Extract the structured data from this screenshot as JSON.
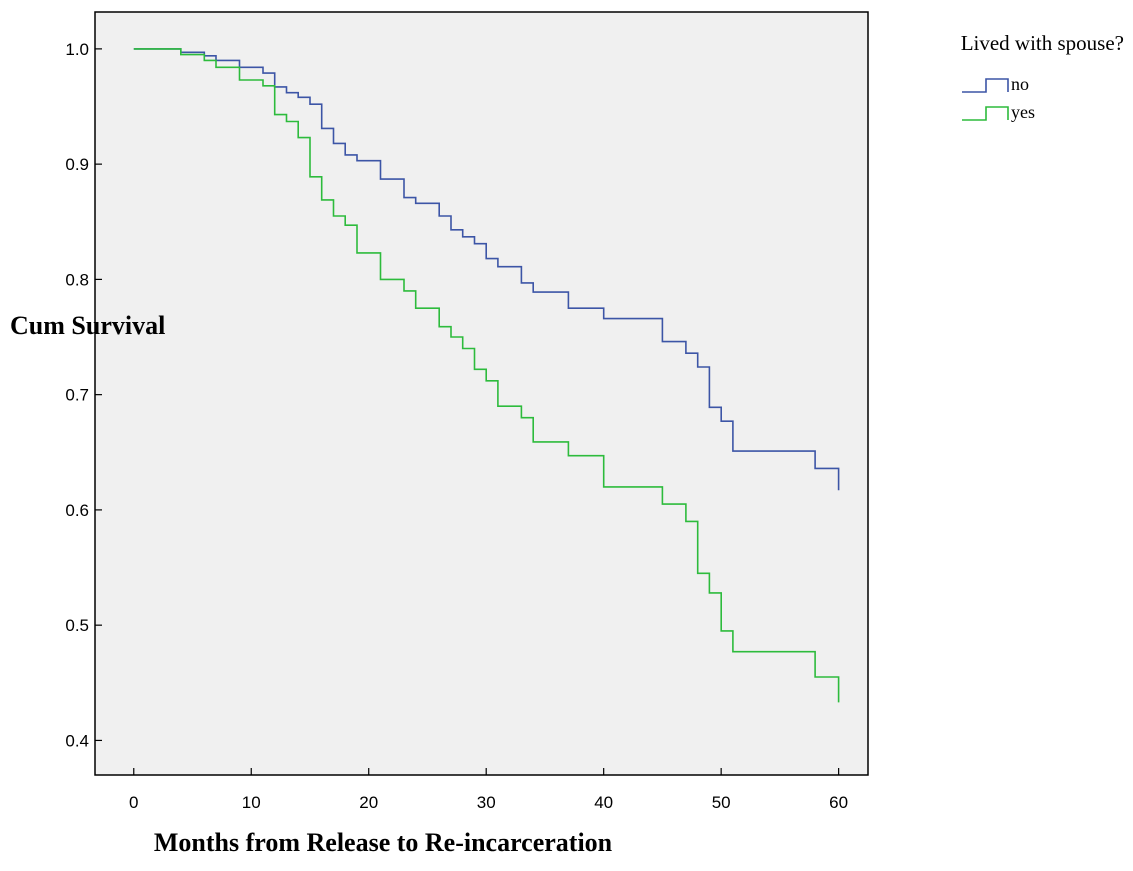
{
  "chart_data": {
    "type": "line",
    "title": "",
    "xlabel": "Months from Release to Re-incarceration",
    "ylabel": "Cum Survival",
    "xlim": [
      -3.3,
      62.5
    ],
    "ylim": [
      0.37,
      1.032
    ],
    "x_ticks": [
      0,
      10,
      20,
      30,
      40,
      50,
      60
    ],
    "y_ticks": [
      0.4,
      0.5,
      0.6,
      0.7,
      0.8,
      0.9,
      1.0
    ],
    "x_tick_labels": [
      "0",
      "10",
      "20",
      "30",
      "40",
      "50",
      "60"
    ],
    "y_tick_labels": [
      "0.4",
      "0.5",
      "0.6",
      "0.7",
      "0.8",
      "0.9",
      "1.0"
    ],
    "grid": false,
    "step": true,
    "legend": {
      "title": "Lived with spouse?",
      "position": "top-right-outside"
    },
    "series": [
      {
        "name": "no",
        "color": "#3c55a6",
        "x": [
          0,
          4,
          6,
          7,
          9,
          11,
          12,
          13,
          14,
          15,
          16,
          17,
          18,
          19,
          21,
          23,
          24,
          26,
          27,
          28,
          29,
          30,
          31,
          33,
          34,
          37,
          40,
          45,
          47,
          48,
          49,
          50,
          51,
          58,
          60
        ],
        "y": [
          1.0,
          0.997,
          0.994,
          0.99,
          0.984,
          0.979,
          0.967,
          0.962,
          0.958,
          0.952,
          0.931,
          0.918,
          0.908,
          0.903,
          0.887,
          0.871,
          0.866,
          0.855,
          0.843,
          0.837,
          0.831,
          0.818,
          0.811,
          0.797,
          0.789,
          0.775,
          0.766,
          0.746,
          0.736,
          0.724,
          0.689,
          0.677,
          0.651,
          0.636,
          0.617
        ]
      },
      {
        "name": "yes",
        "color": "#2dbb3c",
        "x": [
          0,
          4,
          6,
          7,
          9,
          11,
          12,
          13,
          14,
          15,
          16,
          17,
          18,
          19,
          21,
          23,
          24,
          26,
          27,
          28,
          29,
          30,
          31,
          33,
          34,
          37,
          40,
          45,
          47,
          48,
          49,
          50,
          51,
          58,
          60
        ],
        "y": [
          1.0,
          0.995,
          0.99,
          0.984,
          0.973,
          0.968,
          0.943,
          0.937,
          0.923,
          0.889,
          0.869,
          0.855,
          0.847,
          0.823,
          0.8,
          0.79,
          0.775,
          0.759,
          0.75,
          0.74,
          0.722,
          0.712,
          0.69,
          0.68,
          0.659,
          0.647,
          0.62,
          0.605,
          0.59,
          0.545,
          0.528,
          0.495,
          0.477,
          0.455,
          0.433
        ]
      }
    ]
  }
}
